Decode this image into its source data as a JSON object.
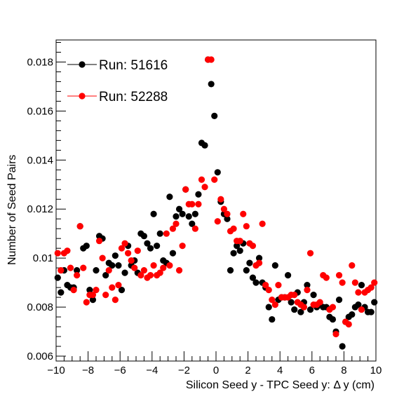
{
  "chart_data": {
    "type": "scatter",
    "title": "",
    "xlabel": "Silicon Seed y - TPC Seed y:   Δ y (cm)",
    "ylabel": "Number of Seed Pairs",
    "xlim": [
      -10,
      10
    ],
    "ylim": [
      0.0058,
      0.0189
    ],
    "x_ticks": [
      -10,
      -8,
      -6,
      -4,
      -2,
      0,
      2,
      4,
      6,
      8,
      10
    ],
    "x_tick_labels": [
      "−10",
      "−8",
      "−6",
      "−4",
      "−2",
      "0",
      "2",
      "4",
      "6",
      "8",
      "10"
    ],
    "y_ticks": [
      0.006,
      0.008,
      0.01,
      0.012,
      0.014,
      0.016,
      0.018
    ],
    "y_tick_labels": [
      "0.006",
      "0.008",
      "0.01",
      "0.012",
      "0.014",
      "0.016",
      "0.018"
    ],
    "grid": false,
    "legend_position": "top-left",
    "series": [
      {
        "name": "Run: 51616",
        "color": "#000000",
        "x": [
          -9.9,
          -9.7,
          -9.5,
          -9.3,
          -9.1,
          -8.9,
          -8.7,
          -8.5,
          -8.3,
          -8.1,
          -7.9,
          -7.7,
          -7.5,
          -7.3,
          -7.1,
          -6.9,
          -6.7,
          -6.5,
          -6.3,
          -6.1,
          -5.9,
          -5.7,
          -5.5,
          -5.3,
          -5.1,
          -4.9,
          -4.7,
          -4.5,
          -4.3,
          -4.1,
          -3.9,
          -3.7,
          -3.5,
          -3.3,
          -3.1,
          -2.9,
          -2.7,
          -2.5,
          -2.3,
          -2.1,
          -1.9,
          -1.7,
          -1.5,
          -1.3,
          -1.1,
          -0.9,
          -0.7,
          -0.5,
          -0.3,
          -0.1,
          0.1,
          0.3,
          0.5,
          0.7,
          0.9,
          1.1,
          1.3,
          1.5,
          1.7,
          1.9,
          2.1,
          2.3,
          2.5,
          2.7,
          2.9,
          3.1,
          3.3,
          3.5,
          3.7,
          3.9,
          4.1,
          4.3,
          4.5,
          4.7,
          4.9,
          5.1,
          5.3,
          5.5,
          5.7,
          5.9,
          6.1,
          6.3,
          6.5,
          6.7,
          6.9,
          7.1,
          7.3,
          7.5,
          7.7,
          7.9,
          8.1,
          8.3,
          8.5,
          8.7,
          8.9,
          9.1,
          9.3,
          9.5,
          9.7,
          9.9
        ],
        "y": [
          0.0092,
          0.0086,
          0.0095,
          0.0089,
          0.0088,
          0.0088,
          0.0095,
          0.0113,
          0.0104,
          0.0105,
          0.0087,
          0.0083,
          0.0095,
          0.0109,
          0.0108,
          0.0093,
          0.0098,
          0.0097,
          0.0101,
          0.0097,
          0.0087,
          0.0094,
          0.0105,
          0.0097,
          0.0099,
          0.0094,
          0.011,
          0.0109,
          0.0106,
          0.0104,
          0.0118,
          0.0105,
          0.011,
          0.0099,
          0.0098,
          0.0125,
          0.0102,
          0.0117,
          0.012,
          0.0118,
          0.0128,
          0.0117,
          0.0114,
          0.0118,
          0.0126,
          0.0147,
          0.0146,
          0.0181,
          0.0171,
          0.0158,
          0.0135,
          0.0123,
          0.0118,
          0.0116,
          0.0095,
          0.0102,
          0.0105,
          0.0103,
          0.0106,
          0.0095,
          0.0098,
          0.0092,
          0.009,
          0.01,
          0.009,
          0.0088,
          0.008,
          0.0075,
          0.0097,
          0.0083,
          0.0084,
          0.0084,
          0.0093,
          0.0082,
          0.0079,
          0.0086,
          0.0078,
          0.0082,
          0.0089,
          0.0079,
          0.0085,
          0.008,
          0.0081,
          0.008,
          0.008,
          0.0076,
          0.0075,
          0.007,
          0.0083,
          0.0064,
          0.0074,
          0.0076,
          0.0077,
          0.008,
          0.0081,
          0.0089,
          0.008,
          0.0078,
          0.0078,
          0.0082
        ]
      },
      {
        "name": "Run: 52288",
        "color": "#ff0000",
        "x": [
          -9.9,
          -9.7,
          -9.5,
          -9.3,
          -9.1,
          -8.9,
          -8.7,
          -8.5,
          -8.3,
          -8.1,
          -7.9,
          -7.7,
          -7.5,
          -7.3,
          -7.1,
          -6.9,
          -6.7,
          -6.5,
          -6.3,
          -6.1,
          -5.9,
          -5.7,
          -5.5,
          -5.3,
          -5.1,
          -4.9,
          -4.7,
          -4.5,
          -4.3,
          -4.1,
          -3.9,
          -3.7,
          -3.5,
          -3.3,
          -3.1,
          -2.9,
          -2.7,
          -2.5,
          -2.3,
          -2.1,
          -1.9,
          -1.7,
          -1.5,
          -1.3,
          -1.1,
          -0.9,
          -0.7,
          -0.5,
          -0.3,
          -0.1,
          0.1,
          0.3,
          0.5,
          0.7,
          0.9,
          1.1,
          1.3,
          1.5,
          1.7,
          1.9,
          2.1,
          2.3,
          2.5,
          2.7,
          2.9,
          3.1,
          3.3,
          3.5,
          3.7,
          3.9,
          4.1,
          4.3,
          4.5,
          4.7,
          4.9,
          5.1,
          5.3,
          5.5,
          5.7,
          5.9,
          6.1,
          6.3,
          6.5,
          6.7,
          6.9,
          7.1,
          7.3,
          7.5,
          7.7,
          7.9,
          8.1,
          8.3,
          8.5,
          8.7,
          8.9,
          9.1,
          9.3,
          9.5,
          9.7,
          9.9
        ],
        "y": [
          0.0102,
          0.0095,
          0.0102,
          0.0103,
          0.0096,
          0.0087,
          0.0093,
          0.0113,
          0.0096,
          0.0082,
          0.0085,
          0.0085,
          0.0087,
          0.0107,
          0.01,
          0.0085,
          0.0095,
          0.0088,
          0.0083,
          0.0089,
          0.0104,
          0.0106,
          0.0102,
          0.0099,
          0.0096,
          0.0103,
          0.0093,
          0.0095,
          0.0092,
          0.0093,
          0.0097,
          0.0093,
          0.0094,
          0.0096,
          0.011,
          0.0097,
          0.0112,
          0.0114,
          0.0095,
          0.0105,
          0.0128,
          0.0122,
          0.0122,
          0.0112,
          0.0122,
          0.0132,
          0.0129,
          0.0181,
          0.0181,
          0.0132,
          0.0115,
          0.0124,
          0.012,
          0.0118,
          0.0111,
          0.0112,
          0.0107,
          0.0107,
          0.0118,
          0.0113,
          0.0106,
          0.0105,
          0.0097,
          0.0098,
          0.0114,
          0.0089,
          0.0087,
          0.0083,
          0.0081,
          0.0089,
          0.0084,
          0.0084,
          0.0084,
          0.0085,
          0.0085,
          0.0082,
          0.0081,
          0.008,
          0.0087,
          0.0102,
          0.0081,
          0.0081,
          0.0082,
          0.0093,
          0.0092,
          0.0079,
          0.008,
          0.0069,
          0.0093,
          0.009,
          0.0074,
          0.0073,
          0.0097,
          0.009,
          0.0086,
          0.0079,
          0.0086,
          0.0087,
          0.0088,
          0.009
        ]
      }
    ]
  }
}
